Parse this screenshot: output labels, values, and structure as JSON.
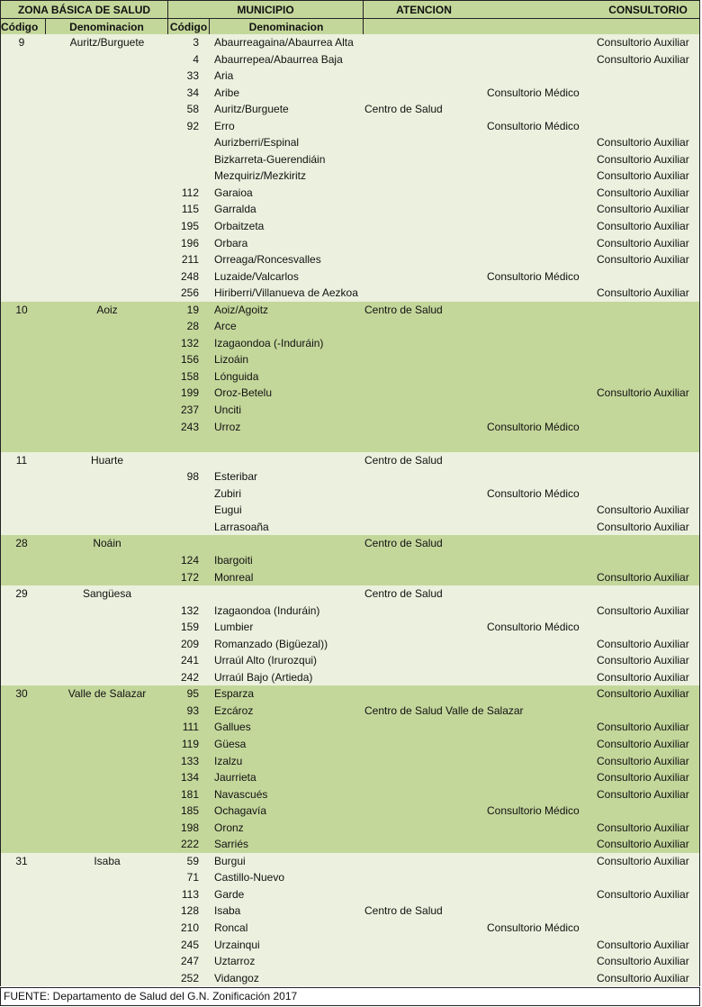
{
  "header": {
    "zona": "ZONA BÁSICA DE SALUD",
    "municipio": "MUNICIPIO",
    "atencion": "ATENCION",
    "consultorio": "CONSULTORIO",
    "zona_codigo": "Código",
    "zona_denominacion": "Denominacion",
    "mun_codigo": "Código",
    "mun_denominacion": "Denominacion"
  },
  "colors": {
    "header": "#c4d79b",
    "light_row": "#ebf1de",
    "dark_row": "#c4d79b"
  },
  "groups": [
    {
      "codigo": "9",
      "nombre": "Auritz/Burguete",
      "shade": "light",
      "rows": [
        [
          "3",
          "Abaurreagaina/Abaurrea Alta",
          "",
          "",
          "Consultorio Auxiliar"
        ],
        [
          "4",
          "Abaurrepea/Abaurrea Baja",
          "",
          "",
          "Consultorio Auxiliar"
        ],
        [
          "33",
          "Aria",
          "",
          "",
          ""
        ],
        [
          "34",
          "Aribe",
          "",
          "Consultorio Médico",
          ""
        ],
        [
          "58",
          "Auritz/Burguete",
          "Centro de Salud",
          "",
          ""
        ],
        [
          "92",
          "Erro",
          "",
          "Consultorio Médico",
          ""
        ],
        [
          "",
          "Aurizberri/Espinal",
          "",
          "",
          "Consultorio Auxiliar"
        ],
        [
          "",
          "Bizkarreta-Guerendiáin",
          "",
          "",
          "Consultorio Auxiliar"
        ],
        [
          "",
          "Mezquiriz/Mezkiritz",
          "",
          "",
          "Consultorio Auxiliar"
        ],
        [
          "112",
          "Garaioa",
          "",
          "",
          "Consultorio Auxiliar"
        ],
        [
          "115",
          "Garralda",
          "",
          "",
          "Consultorio Auxiliar"
        ],
        [
          "195",
          "Orbaitzeta",
          "",
          "",
          "Consultorio Auxiliar"
        ],
        [
          "196",
          "Orbara",
          "",
          "",
          "Consultorio Auxiliar"
        ],
        [
          "211",
          "Orreaga/Roncesvalles",
          "",
          "",
          "Consultorio Auxiliar"
        ],
        [
          "248",
          "Luzaide/Valcarlos",
          "",
          "Consultorio Médico",
          ""
        ],
        [
          "256",
          "Hiriberri/Villanueva de Aezkoa",
          "",
          "",
          "Consultorio Auxiliar"
        ]
      ]
    },
    {
      "codigo": "10",
      "nombre": "Aoiz",
      "shade": "dark",
      "rows": [
        [
          "19",
          "Aoiz/Agoitz",
          "Centro de Salud",
          "",
          ""
        ],
        [
          "28",
          "Arce",
          "",
          "",
          ""
        ],
        [
          "132",
          "Izagaondoa (-Induráin)",
          "",
          "",
          ""
        ],
        [
          "156",
          "Lizoáin",
          "",
          "",
          ""
        ],
        [
          "158",
          "Lónguida",
          "",
          "",
          ""
        ],
        [
          "199",
          "Oroz-Betelu",
          "",
          "",
          "Consultorio Auxiliar"
        ],
        [
          "237",
          "Unciti",
          "",
          "",
          ""
        ],
        [
          "243",
          "Urroz",
          "",
          "Consultorio Médico",
          ""
        ],
        [
          "",
          "",
          "",
          "",
          ""
        ]
      ]
    },
    {
      "codigo": "11",
      "nombre": "Huarte",
      "shade": "light",
      "rows": [
        [
          "",
          "",
          "Centro de Salud",
          "",
          ""
        ],
        [
          "98",
          "Esteribar",
          "",
          "",
          ""
        ],
        [
          "",
          "Zubiri",
          "",
          "Consultorio Médico",
          ""
        ],
        [
          "",
          "Eugui",
          "",
          "",
          "Consultorio Auxiliar"
        ],
        [
          "",
          "Larrasoaña",
          "",
          "",
          "Consultorio  Auxiliar"
        ]
      ]
    },
    {
      "codigo": "28",
      "nombre": "Noáin",
      "shade": "dark",
      "rows": [
        [
          "",
          "",
          "Centro de Salud",
          "",
          ""
        ],
        [
          "124",
          "Ibargoiti",
          "",
          "",
          ""
        ],
        [
          "172",
          "Monreal",
          "",
          "",
          "Consultorio Auxiliar"
        ]
      ]
    },
    {
      "codigo": "29",
      "nombre": "Sangüesa",
      "shade": "light",
      "rows": [
        [
          "",
          "",
          "Centro de Salud",
          "",
          ""
        ],
        [
          "132",
          "Izagaondoa (Induráin)",
          "",
          "",
          "Consultorio Auxiliar"
        ],
        [
          "159",
          "Lumbier",
          "",
          "Consultorio Médico",
          ""
        ],
        [
          "209",
          "Romanzado (Bigüezal))",
          "",
          "",
          "Consultorio Auxiliar"
        ],
        [
          "241",
          "Urraúl Alto (Irurozqui)",
          "",
          "",
          "Consultorio Auxiliar"
        ],
        [
          "242",
          "Urraúl Bajo (Artieda)",
          "",
          "",
          "Consultorio Auxiliar"
        ]
      ]
    },
    {
      "codigo": "30",
      "nombre": "Valle de Salazar",
      "shade": "dark",
      "rows": [
        [
          "95",
          "Esparza",
          "",
          "",
          "Consultorio Auxiliar"
        ],
        [
          "93",
          "Ezcároz",
          "Centro de Salud Valle de Salazar",
          "",
          ""
        ],
        [
          "111",
          "Gallues",
          "",
          "",
          "Consultorio Auxiliar"
        ],
        [
          "119",
          "Güesa",
          "",
          "",
          "Consultorio Auxiliar"
        ],
        [
          "133",
          "Izalzu",
          "",
          "",
          "Consultorio Auxiliar"
        ],
        [
          "134",
          "Jaurrieta",
          "",
          "",
          "Consultorio Auxiliar"
        ],
        [
          "181",
          "Navascués",
          "",
          "",
          "Consultorio Auxiliar"
        ],
        [
          "185",
          "Ochagavía",
          "",
          "Consultorio Médico",
          ""
        ],
        [
          "198",
          "Oronz",
          "",
          "",
          "Consultorio Auxiliar"
        ],
        [
          "222",
          "Sarriés",
          "",
          "",
          "Consultorio Auxiliar"
        ]
      ]
    },
    {
      "codigo": "31",
      "nombre": "Isaba",
      "shade": "light",
      "rows": [
        [
          "59",
          "Burgui",
          "",
          "",
          "Consultorio Auxiliar"
        ],
        [
          "71",
          "Castillo-Nuevo",
          "",
          "",
          ""
        ],
        [
          "113",
          "Garde",
          "",
          "",
          "Consultorio Auxiliar"
        ],
        [
          "128",
          "Isaba",
          "Centro de Salud",
          "",
          ""
        ],
        [
          "210",
          "Roncal",
          "",
          "Consultorio Médico",
          ""
        ],
        [
          "245",
          "Urzainqui",
          "",
          "",
          "Consultorio Auxiliar"
        ],
        [
          "247",
          "Uztarroz",
          "",
          "",
          "Consultorio Auxiliar"
        ],
        [
          "252",
          "Vidangoz",
          "",
          "",
          "Consultorio Auxiliar"
        ]
      ]
    }
  ],
  "footer": "FUENTE: Departamento de Salud del G.N. Zonificación 2017"
}
